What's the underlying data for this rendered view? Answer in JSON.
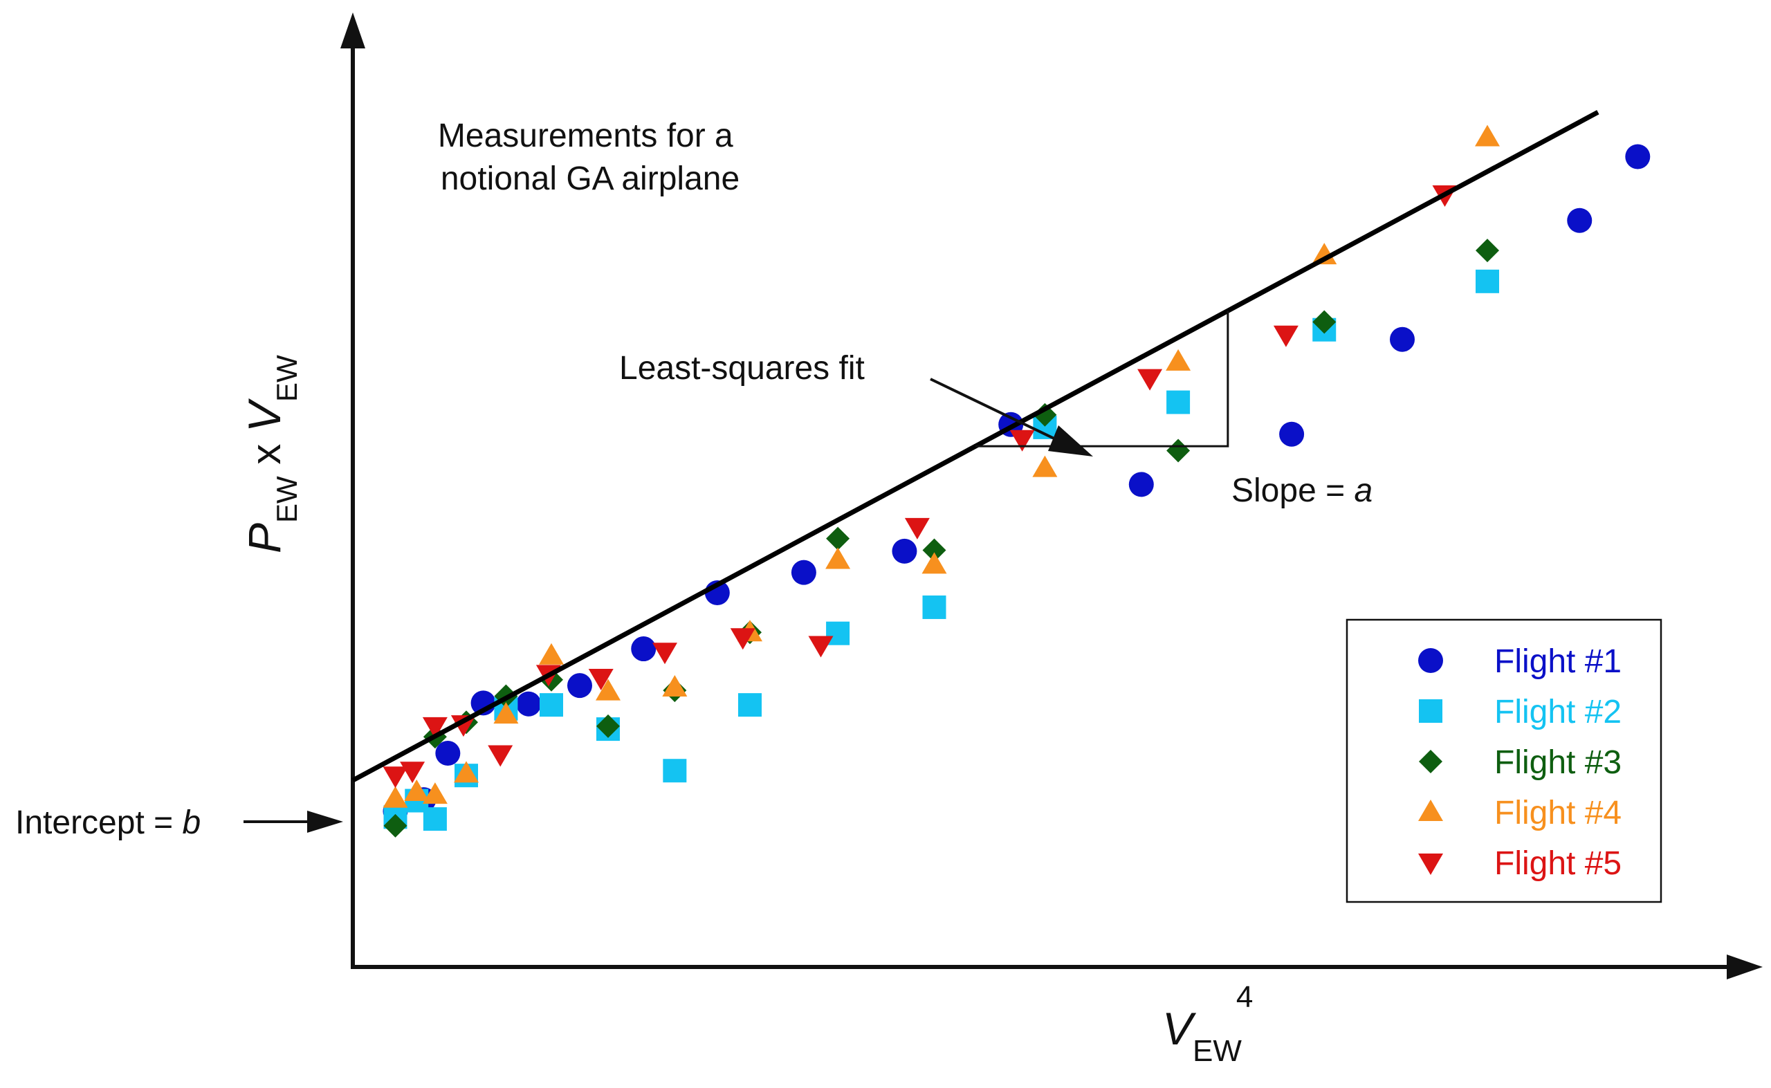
{
  "chart_data": {
    "type": "scatter",
    "title": "Measurements for a notional GA airplane",
    "title_lines": [
      "Measurements for a",
      "notional GA airplane"
    ],
    "x_label": {
      "main": "V",
      "sub": "EW",
      "sup": "4"
    },
    "y_label": {
      "p": "P",
      "p_sub": "EW",
      "times": " x ",
      "v": "V",
      "v_sub": "EW"
    },
    "axis_ticks": false,
    "grid": false,
    "legend_position": "bottom-right",
    "xlim": [
      0,
      1.0
    ],
    "ylim": [
      0,
      1.0
    ],
    "fit": {
      "label": "Least-squares fit",
      "intercept": 0.193,
      "slope": 0.787,
      "x_end": 0.878
    },
    "intercept_annotation": {
      "prefix": "Intercept = ",
      "var": "b"
    },
    "slope_annotation": {
      "prefix": "Slope = ",
      "var": "a",
      "x_from": 0.439,
      "x_to": 0.617
    },
    "series": [
      {
        "name": "Flight #1",
        "marker": "circle",
        "color": "#0a10c8",
        "points": [
          [
            0.03,
            0.161
          ],
          [
            0.05,
            0.173
          ],
          [
            0.067,
            0.221
          ],
          [
            0.092,
            0.273
          ],
          [
            0.124,
            0.272
          ],
          [
            0.16,
            0.291
          ],
          [
            0.205,
            0.329
          ],
          [
            0.257,
            0.387
          ],
          [
            0.318,
            0.408
          ],
          [
            0.389,
            0.43
          ],
          [
            0.464,
            0.561
          ],
          [
            0.556,
            0.499
          ],
          [
            0.662,
            0.551
          ],
          [
            0.74,
            0.649
          ],
          [
            0.865,
            0.772
          ],
          [
            0.906,
            0.838
          ]
        ]
      },
      {
        "name": "Flight #2",
        "marker": "square",
        "color": "#14c3f2",
        "points": [
          [
            0.03,
            0.155
          ],
          [
            0.045,
            0.172
          ],
          [
            0.058,
            0.153
          ],
          [
            0.08,
            0.198
          ],
          [
            0.108,
            0.267
          ],
          [
            0.14,
            0.271
          ],
          [
            0.18,
            0.246
          ],
          [
            0.227,
            0.203
          ],
          [
            0.28,
            0.271
          ],
          [
            0.342,
            0.345
          ],
          [
            0.41,
            0.372
          ],
          [
            0.488,
            0.558
          ],
          [
            0.582,
            0.584
          ],
          [
            0.685,
            0.659
          ],
          [
            0.8,
            0.709
          ]
        ]
      },
      {
        "name": "Flight #3",
        "marker": "diamond",
        "color": "#0e5e10",
        "points": [
          [
            0.03,
            0.146
          ],
          [
            0.058,
            0.238
          ],
          [
            0.08,
            0.253
          ],
          [
            0.108,
            0.28
          ],
          [
            0.14,
            0.297
          ],
          [
            0.18,
            0.249
          ],
          [
            0.227,
            0.286
          ],
          [
            0.28,
            0.346
          ],
          [
            0.342,
            0.443
          ],
          [
            0.41,
            0.431
          ],
          [
            0.488,
            0.571
          ],
          [
            0.582,
            0.534
          ],
          [
            0.685,
            0.667
          ],
          [
            0.8,
            0.741
          ]
        ]
      },
      {
        "name": "Flight #4",
        "marker": "triangle-up",
        "color": "#f7901e",
        "points": [
          [
            0.03,
            0.174
          ],
          [
            0.045,
            0.181
          ],
          [
            0.058,
            0.178
          ],
          [
            0.08,
            0.2
          ],
          [
            0.108,
            0.261
          ],
          [
            0.14,
            0.322
          ],
          [
            0.18,
            0.285
          ],
          [
            0.227,
            0.289
          ],
          [
            0.28,
            0.346
          ],
          [
            0.342,
            0.421
          ],
          [
            0.41,
            0.416
          ],
          [
            0.488,
            0.516
          ],
          [
            0.582,
            0.626
          ],
          [
            0.685,
            0.736
          ],
          [
            0.8,
            0.858
          ]
        ]
      },
      {
        "name": "Flight #5",
        "marker": "triangle-down",
        "color": "#dc1414",
        "points": [
          [
            0.03,
            0.198
          ],
          [
            0.042,
            0.203
          ],
          [
            0.058,
            0.249
          ],
          [
            0.078,
            0.251
          ],
          [
            0.104,
            0.22
          ],
          [
            0.138,
            0.303
          ],
          [
            0.175,
            0.299
          ],
          [
            0.22,
            0.326
          ],
          [
            0.275,
            0.341
          ],
          [
            0.33,
            0.333
          ],
          [
            0.398,
            0.455
          ],
          [
            0.472,
            0.546
          ],
          [
            0.562,
            0.609
          ],
          [
            0.658,
            0.654
          ],
          [
            0.77,
            0.799
          ]
        ]
      }
    ]
  }
}
